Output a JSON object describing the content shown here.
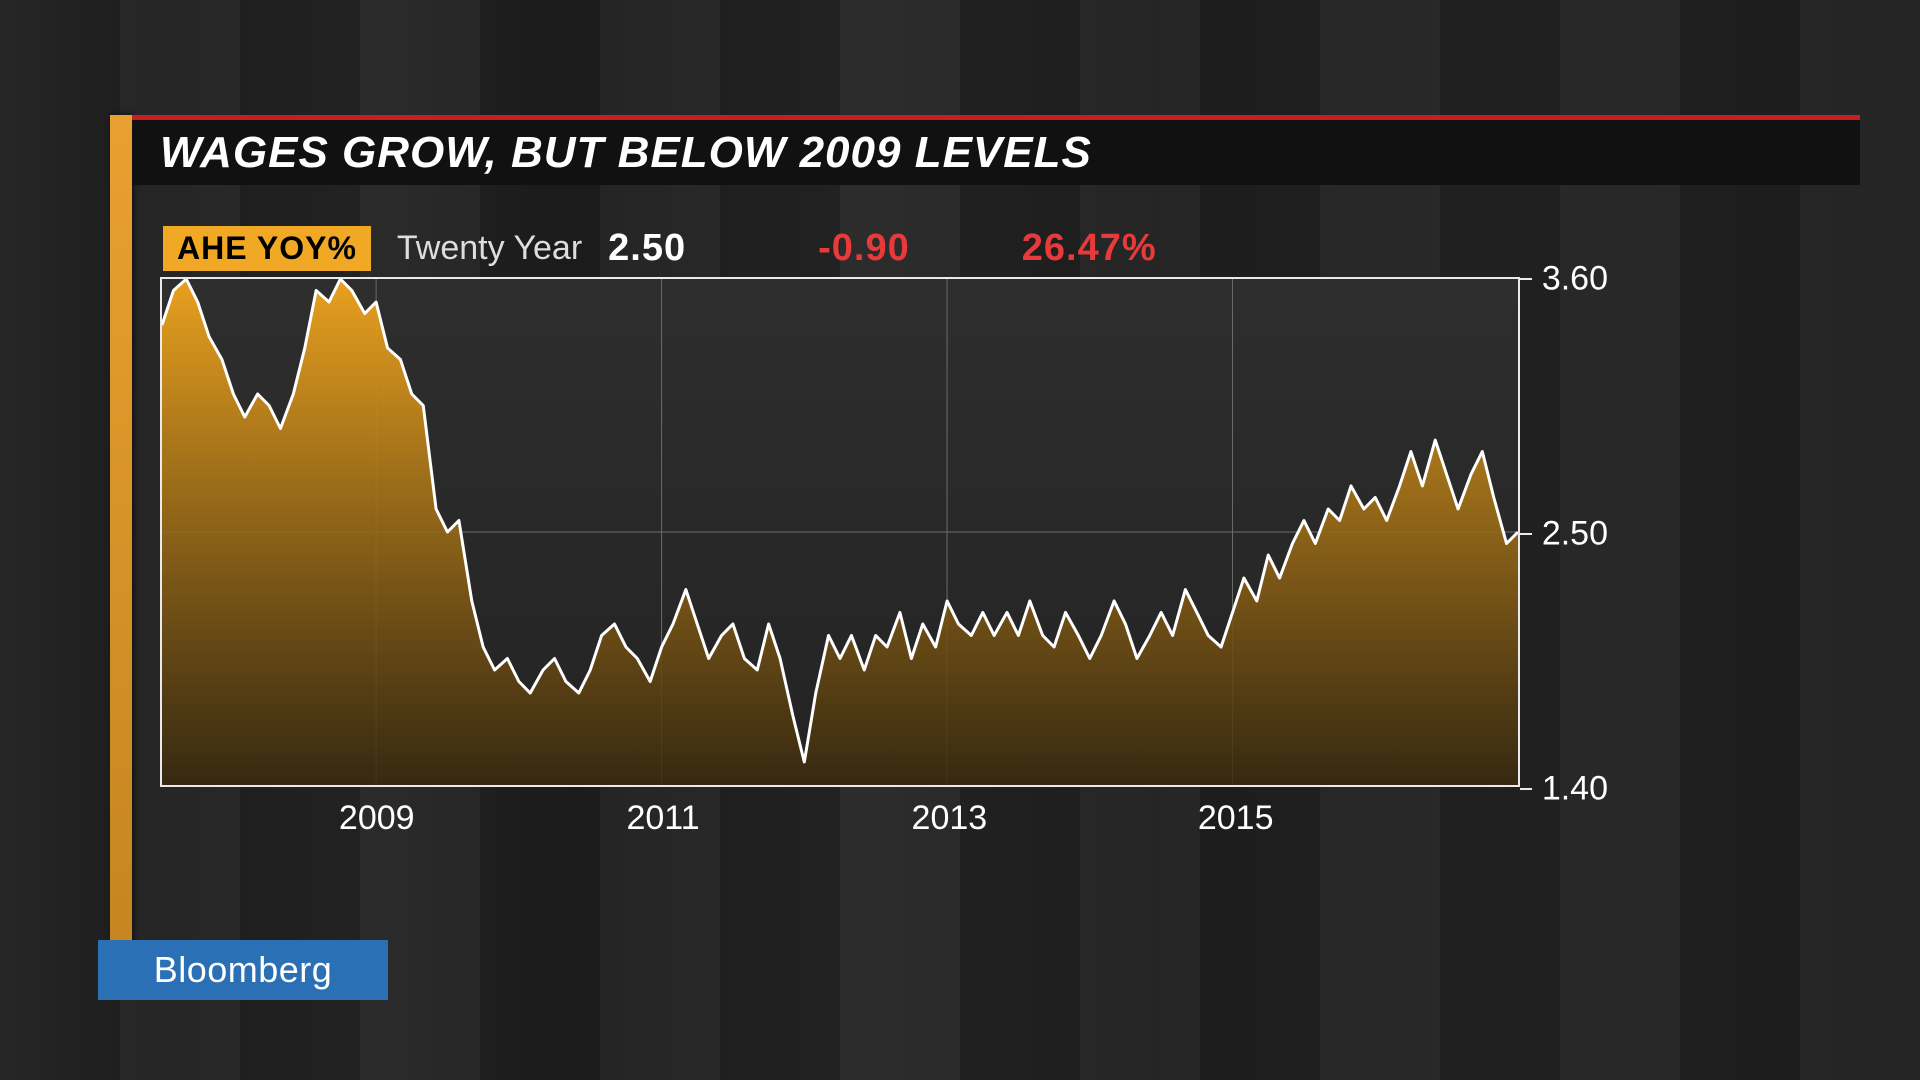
{
  "title": "WAGES GROW, BUT BELOW 2009 LEVELS",
  "brand": "Bloomberg",
  "stats": {
    "badge": "AHE YOY%",
    "period_label": "Twenty Year",
    "value": "2.50",
    "change": "-0.90",
    "pct": "26.47%"
  },
  "chart": {
    "type": "area",
    "background_top": "#2e2e2e",
    "background_bottom": "#232323",
    "border_color": "#eaeaea",
    "grid_color": "#6b6b6b",
    "grid_width": 1,
    "line_color": "#ffffff",
    "line_width": 3,
    "fill_top": "#f2a61e",
    "fill_bottom": "#3a2a0e",
    "ylim": [
      1.4,
      3.6
    ],
    "ytick_values": [
      1.4,
      2.5,
      3.6
    ],
    "ytick_labels": [
      "1.40",
      "2.50",
      "3.60"
    ],
    "x_min_year": 2007.5,
    "x_max_year": 2017.0,
    "x_tick_years": [
      2009,
      2011,
      2013,
      2015
    ],
    "x_tick_labels": [
      "2009",
      "2011",
      "2013",
      "2015"
    ],
    "vgrid_years": [
      2009,
      2011,
      2013,
      2015
    ],
    "series": [
      [
        2007.5,
        3.4
      ],
      [
        2007.58,
        3.55
      ],
      [
        2007.67,
        3.6
      ],
      [
        2007.75,
        3.5
      ],
      [
        2007.83,
        3.35
      ],
      [
        2007.92,
        3.25
      ],
      [
        2008.0,
        3.1
      ],
      [
        2008.08,
        3.0
      ],
      [
        2008.17,
        3.1
      ],
      [
        2008.25,
        3.05
      ],
      [
        2008.33,
        2.95
      ],
      [
        2008.42,
        3.1
      ],
      [
        2008.5,
        3.3
      ],
      [
        2008.58,
        3.55
      ],
      [
        2008.67,
        3.5
      ],
      [
        2008.75,
        3.6
      ],
      [
        2008.83,
        3.55
      ],
      [
        2008.92,
        3.45
      ],
      [
        2009.0,
        3.5
      ],
      [
        2009.08,
        3.3
      ],
      [
        2009.17,
        3.25
      ],
      [
        2009.25,
        3.1
      ],
      [
        2009.33,
        3.05
      ],
      [
        2009.42,
        2.6
      ],
      [
        2009.5,
        2.5
      ],
      [
        2009.58,
        2.55
      ],
      [
        2009.67,
        2.2
      ],
      [
        2009.75,
        2.0
      ],
      [
        2009.83,
        1.9
      ],
      [
        2009.92,
        1.95
      ],
      [
        2010.0,
        1.85
      ],
      [
        2010.08,
        1.8
      ],
      [
        2010.17,
        1.9
      ],
      [
        2010.25,
        1.95
      ],
      [
        2010.33,
        1.85
      ],
      [
        2010.42,
        1.8
      ],
      [
        2010.5,
        1.9
      ],
      [
        2010.58,
        2.05
      ],
      [
        2010.67,
        2.1
      ],
      [
        2010.75,
        2.0
      ],
      [
        2010.83,
        1.95
      ],
      [
        2010.92,
        1.85
      ],
      [
        2011.0,
        2.0
      ],
      [
        2011.08,
        2.1
      ],
      [
        2011.17,
        2.25
      ],
      [
        2011.25,
        2.1
      ],
      [
        2011.33,
        1.95
      ],
      [
        2011.42,
        2.05
      ],
      [
        2011.5,
        2.1
      ],
      [
        2011.58,
        1.95
      ],
      [
        2011.67,
        1.9
      ],
      [
        2011.75,
        2.1
      ],
      [
        2011.83,
        1.95
      ],
      [
        2011.92,
        1.7
      ],
      [
        2012.0,
        1.5
      ],
      [
        2012.08,
        1.8
      ],
      [
        2012.17,
        2.05
      ],
      [
        2012.25,
        1.95
      ],
      [
        2012.33,
        2.05
      ],
      [
        2012.42,
        1.9
      ],
      [
        2012.5,
        2.05
      ],
      [
        2012.58,
        2.0
      ],
      [
        2012.67,
        2.15
      ],
      [
        2012.75,
        1.95
      ],
      [
        2012.83,
        2.1
      ],
      [
        2012.92,
        2.0
      ],
      [
        2013.0,
        2.2
      ],
      [
        2013.08,
        2.1
      ],
      [
        2013.17,
        2.05
      ],
      [
        2013.25,
        2.15
      ],
      [
        2013.33,
        2.05
      ],
      [
        2013.42,
        2.15
      ],
      [
        2013.5,
        2.05
      ],
      [
        2013.58,
        2.2
      ],
      [
        2013.67,
        2.05
      ],
      [
        2013.75,
        2.0
      ],
      [
        2013.83,
        2.15
      ],
      [
        2013.92,
        2.05
      ],
      [
        2014.0,
        1.95
      ],
      [
        2014.08,
        2.05
      ],
      [
        2014.17,
        2.2
      ],
      [
        2014.25,
        2.1
      ],
      [
        2014.33,
        1.95
      ],
      [
        2014.42,
        2.05
      ],
      [
        2014.5,
        2.15
      ],
      [
        2014.58,
        2.05
      ],
      [
        2014.67,
        2.25
      ],
      [
        2014.75,
        2.15
      ],
      [
        2014.83,
        2.05
      ],
      [
        2014.92,
        2.0
      ],
      [
        2015.0,
        2.15
      ],
      [
        2015.08,
        2.3
      ],
      [
        2015.17,
        2.2
      ],
      [
        2015.25,
        2.4
      ],
      [
        2015.33,
        2.3
      ],
      [
        2015.42,
        2.45
      ],
      [
        2015.5,
        2.55
      ],
      [
        2015.58,
        2.45
      ],
      [
        2015.67,
        2.6
      ],
      [
        2015.75,
        2.55
      ],
      [
        2015.83,
        2.7
      ],
      [
        2015.92,
        2.6
      ],
      [
        2016.0,
        2.65
      ],
      [
        2016.08,
        2.55
      ],
      [
        2016.17,
        2.7
      ],
      [
        2016.25,
        2.85
      ],
      [
        2016.33,
        2.7
      ],
      [
        2016.42,
        2.9
      ],
      [
        2016.5,
        2.75
      ],
      [
        2016.58,
        2.6
      ],
      [
        2016.67,
        2.75
      ],
      [
        2016.75,
        2.85
      ],
      [
        2016.83,
        2.65
      ],
      [
        2016.92,
        2.45
      ],
      [
        2017.0,
        2.5
      ]
    ]
  },
  "colors": {
    "red_accent": "#c81e1e",
    "orange_bar": "#e8a030",
    "text_white": "#ffffff",
    "text_red": "#e83a3a",
    "logo_bg": "#2b6fb5"
  },
  "fonts": {
    "title_size": 44,
    "stat_size": 38,
    "axis_size": 34
  }
}
